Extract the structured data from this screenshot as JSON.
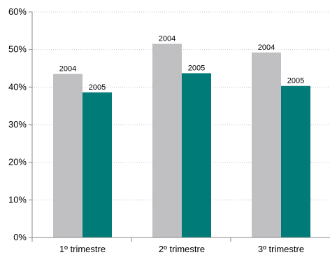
{
  "chart_data": {
    "type": "bar",
    "categories": [
      "1º trimestre",
      "2º trimestre",
      "3º trimestre"
    ],
    "series": [
      {
        "name": "2004",
        "values": [
          43.5,
          51.5,
          49.2
        ],
        "color": "#c0bfc2",
        "data_label": "2004"
      },
      {
        "name": "2005",
        "values": [
          38.6,
          43.7,
          40.3
        ],
        "color": "#007b78",
        "data_label": "2005"
      }
    ],
    "y_ticks": [
      "0%",
      "10%",
      "20%",
      "30%",
      "40%",
      "50%",
      "60%"
    ],
    "ylim": [
      0,
      60
    ],
    "grid": true,
    "legend": "none",
    "title": "",
    "xlabel": "",
    "ylabel": ""
  }
}
